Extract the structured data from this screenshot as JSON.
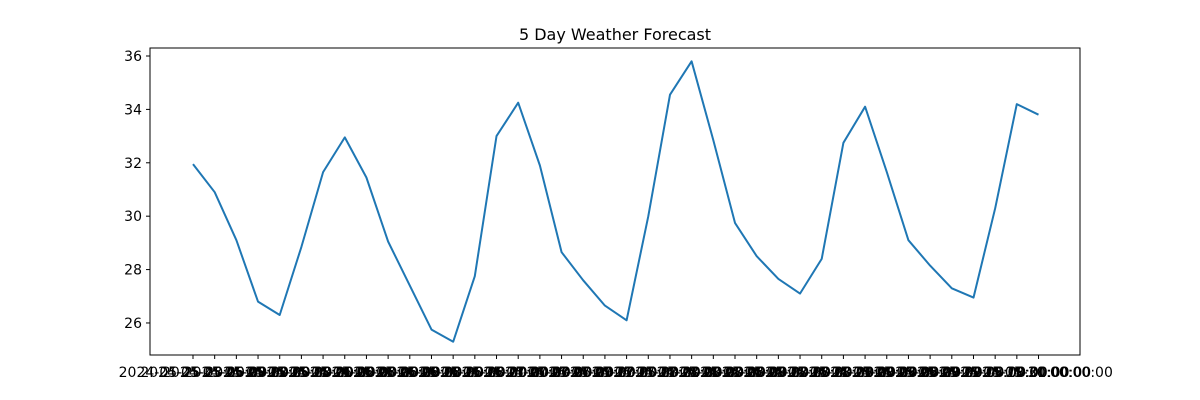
{
  "chart_data": {
    "type": "line",
    "title": "5 Day Weather Forecast",
    "xlabel": "",
    "ylabel": "",
    "grid": false,
    "ylim": [
      24.8,
      36.3
    ],
    "yticks": [
      26,
      28,
      30,
      32,
      34,
      36
    ],
    "colors": {
      "line": "#1f77b4",
      "axes": "#000000"
    },
    "x": [
      "2024-05-25 03:00:00",
      "2024-05-25 06:00:00",
      "2024-05-25 09:00:00",
      "2024-05-25 12:00:00",
      "2024-05-25 15:00:00",
      "2024-05-25 18:00:00",
      "2024-05-25 21:00:00",
      "2024-05-26 00:00:00",
      "2024-05-26 03:00:00",
      "2024-05-26 06:00:00",
      "2024-05-26 09:00:00",
      "2024-05-26 12:00:00",
      "2024-05-26 15:00:00",
      "2024-05-26 18:00:00",
      "2024-05-26 21:00:00",
      "2024-05-27 00:00:00",
      "2024-05-27 03:00:00",
      "2024-05-27 06:00:00",
      "2024-05-27 09:00:00",
      "2024-05-27 12:00:00",
      "2024-05-27 15:00:00",
      "2024-05-27 18:00:00",
      "2024-05-27 21:00:00",
      "2024-05-28 00:00:00",
      "2024-05-28 03:00:00",
      "2024-05-28 06:00:00",
      "2024-05-28 09:00:00",
      "2024-05-28 12:00:00",
      "2024-05-28 15:00:00",
      "2024-05-28 18:00:00",
      "2024-05-28 21:00:00",
      "2024-05-29 00:00:00",
      "2024-05-29 03:00:00",
      "2024-05-29 06:00:00",
      "2024-05-29 09:00:00",
      "2024-05-29 12:00:00",
      "2024-05-29 15:00:00",
      "2024-05-29 18:00:00",
      "2024-05-29 21:00:00",
      "2024-05-30 00:00:00"
    ],
    "series": [
      {
        "values": [
          31.95,
          30.9,
          29.1,
          26.8,
          26.3,
          28.85,
          31.65,
          32.95,
          31.45,
          29.05,
          27.4,
          25.75,
          25.3,
          27.75,
          33.0,
          34.25,
          31.9,
          28.65,
          27.6,
          26.65,
          26.1,
          30.0,
          34.55,
          35.8,
          32.85,
          29.75,
          28.5,
          27.65,
          27.1,
          28.4,
          32.75,
          34.1,
          31.65,
          29.1,
          28.15,
          27.3,
          26.95,
          30.3,
          34.2,
          33.8
        ]
      }
    ]
  }
}
